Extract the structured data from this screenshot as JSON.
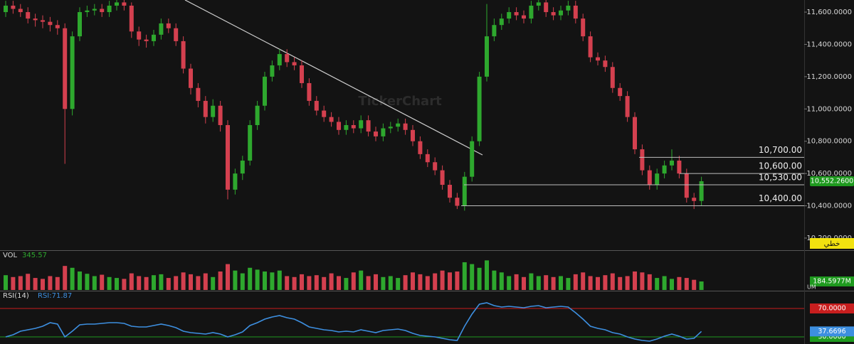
{
  "chart_data": [
    {
      "type": "candlestick",
      "watermark": "TickerChart",
      "mode_label": "خطي",
      "up_color": "#2ea82e",
      "down_color": "#d4404f",
      "open": [
        11600,
        11640,
        11620,
        11600,
        11560,
        11550,
        11540,
        11520,
        11500,
        11000,
        11450,
        11600,
        11610,
        11620,
        11600,
        11640,
        11660,
        11640,
        11480,
        11430,
        11420,
        11460,
        11530,
        11500,
        11420,
        11250,
        11130,
        11050,
        10950,
        11020,
        10900,
        10500,
        10600,
        10680,
        10900,
        11020,
        11200,
        11270,
        11340,
        11290,
        11270,
        11160,
        11050,
        10990,
        10950,
        10920,
        10870,
        10900,
        10880,
        10930,
        10860,
        10830,
        10880,
        10890,
        10910,
        10870,
        10800,
        10720,
        10670,
        10620,
        10530,
        10450,
        10400,
        10580,
        10800,
        11200,
        11450,
        11520,
        11560,
        11600,
        11580,
        11560,
        11640,
        11660,
        11600,
        11580,
        11610,
        11640,
        11560,
        11450,
        11320,
        11300,
        11260,
        11130,
        11080,
        10950,
        10750,
        10620,
        10530,
        10600,
        10650,
        10680,
        10600,
        10450,
        10430
      ],
      "high": [
        11670,
        11670,
        11650,
        11630,
        11590,
        11580,
        11570,
        11550,
        11530,
        11480,
        11630,
        11640,
        11650,
        11650,
        11670,
        11675,
        11675,
        11660,
        11510,
        11460,
        11490,
        11560,
        11560,
        11530,
        11450,
        11280,
        11160,
        11080,
        11060,
        11050,
        10930,
        10630,
        10710,
        10930,
        11050,
        11230,
        11300,
        11370,
        11370,
        11320,
        11300,
        11190,
        11080,
        11020,
        10980,
        10950,
        10930,
        10930,
        10960,
        10960,
        10890,
        10910,
        10920,
        10940,
        10940,
        10900,
        10830,
        10750,
        10700,
        10650,
        10560,
        10480,
        10610,
        10830,
        11230,
        11650,
        11560,
        11590,
        11630,
        11630,
        11610,
        11670,
        11675,
        11675,
        11630,
        11640,
        11670,
        11670,
        11590,
        11480,
        11350,
        11330,
        11290,
        11160,
        11110,
        10980,
        10780,
        10650,
        10630,
        10680,
        10750,
        10710,
        10630,
        10480,
        10580
      ],
      "low": [
        11570,
        11590,
        11570,
        11530,
        11510,
        11500,
        11480,
        11460,
        10660,
        10960,
        11420,
        11570,
        11580,
        11570,
        11570,
        11610,
        11610,
        11440,
        11390,
        11380,
        11390,
        11430,
        11470,
        11390,
        11220,
        11090,
        11010,
        10910,
        10920,
        10860,
        10440,
        10470,
        10560,
        10650,
        10870,
        10990,
        11170,
        11240,
        11260,
        11240,
        11130,
        11020,
        10960,
        10920,
        10890,
        10840,
        10840,
        10850,
        10850,
        10830,
        10800,
        10800,
        10850,
        10860,
        10840,
        10770,
        10690,
        10640,
        10590,
        10500,
        10420,
        10380,
        10370,
        10550,
        10770,
        11170,
        11420,
        11490,
        11530,
        11550,
        11530,
        11530,
        11610,
        11570,
        11550,
        11550,
        11580,
        11530,
        11420,
        11290,
        11270,
        11230,
        11100,
        11050,
        10920,
        10720,
        10590,
        10500,
        10500,
        10570,
        10620,
        10570,
        10420,
        10380,
        10400
      ],
      "close": [
        11640,
        11620,
        11600,
        11560,
        11550,
        11540,
        11520,
        11500,
        11000,
        11450,
        11600,
        11610,
        11620,
        11600,
        11640,
        11660,
        11640,
        11480,
        11430,
        11420,
        11460,
        11530,
        11500,
        11420,
        11250,
        11130,
        11050,
        10950,
        11020,
        10900,
        10500,
        10600,
        10680,
        10900,
        11020,
        11200,
        11270,
        11340,
        11290,
        11270,
        11160,
        11050,
        10990,
        10950,
        10920,
        10870,
        10900,
        10880,
        10930,
        10860,
        10830,
        10880,
        10890,
        10910,
        10870,
        10800,
        10720,
        10670,
        10620,
        10530,
        10450,
        10400,
        10580,
        10800,
        11200,
        11450,
        11520,
        11560,
        11600,
        11580,
        11560,
        11640,
        11660,
        11600,
        11580,
        11610,
        11640,
        11560,
        11450,
        11320,
        11300,
        11260,
        11130,
        11080,
        10950,
        10750,
        10620,
        10530,
        10600,
        10650,
        10680,
        10600,
        10450,
        10430,
        10552.26
      ],
      "ylim": [
        10125,
        11675
      ],
      "yticks": [
        {
          "value": 11600,
          "label": "11,600.0000"
        },
        {
          "value": 11400,
          "label": "11,400.0000"
        },
        {
          "value": 11200,
          "label": "11,200.0000"
        },
        {
          "value": 11000,
          "label": "11,000.0000"
        },
        {
          "value": 10800,
          "label": "10,800.0000"
        },
        {
          "value": 10600,
          "label": "10,600.0000"
        },
        {
          "value": 10400,
          "label": "10,400.0000"
        },
        {
          "value": 10200,
          "label": "10,200.0000"
        }
      ],
      "last_price": {
        "value": 10552.26,
        "label": "10,552.2600"
      },
      "levels": [
        {
          "value": 10700,
          "label": "10,700.00"
        },
        {
          "value": 10600,
          "label": "10,600.00"
        },
        {
          "value": 10530,
          "label": "10,530.00"
        },
        {
          "value": 10400,
          "label": "10,400.00"
        }
      ]
    },
    {
      "type": "bar",
      "title": "VOL",
      "title_value": "345.57",
      "values": [
        320,
        280,
        300,
        350,
        260,
        240,
        300,
        280,
        520,
        480,
        400,
        350,
        300,
        330,
        280,
        260,
        240,
        360,
        300,
        280,
        320,
        340,
        260,
        300,
        380,
        340,
        300,
        360,
        280,
        400,
        560,
        420,
        360,
        480,
        440,
        400,
        380,
        420,
        300,
        280,
        340,
        300,
        320,
        280,
        360,
        300,
        260,
        380,
        420,
        300,
        340,
        280,
        300,
        260,
        320,
        380,
        340,
        300,
        360,
        420,
        380,
        400,
        600,
        560,
        480,
        640,
        420,
        380,
        300,
        340,
        280,
        360,
        300,
        320,
        280,
        300,
        260,
        340,
        380,
        300,
        280,
        320,
        360,
        280,
        300,
        400,
        380,
        340,
        260,
        300,
        240,
        280,
        260,
        220,
        184.5977
      ],
      "ylim": [
        0,
        830
      ],
      "last_value": {
        "value": 184.5977,
        "label": "184.5977M"
      },
      "unit_label": "UM"
    },
    {
      "type": "line",
      "title": "RSI(14)",
      "title_value": "RSI:71.87",
      "color": "#3d8fe0",
      "values": [
        30,
        33,
        38,
        40,
        42,
        45,
        50,
        48,
        30,
        38,
        47,
        48,
        48,
        49,
        50,
        50,
        49,
        45,
        44,
        44,
        46,
        48,
        46,
        43,
        38,
        36,
        35,
        34,
        36,
        34,
        30,
        33,
        37,
        46,
        50,
        55,
        58,
        60,
        57,
        55,
        50,
        44,
        42,
        40,
        39,
        37,
        38,
        37,
        40,
        38,
        36,
        39,
        40,
        41,
        39,
        35,
        32,
        31,
        30,
        28,
        26,
        25,
        45,
        62,
        76,
        78,
        74,
        72,
        73,
        72,
        71,
        73,
        74,
        71,
        72,
        73,
        72,
        64,
        55,
        45,
        42,
        40,
        36,
        34,
        30,
        27,
        25,
        24,
        27,
        31,
        34,
        31,
        27,
        28,
        37.6696
      ],
      "ylim": [
        20,
        94
      ],
      "levels": [
        {
          "value": 70,
          "label": "70.0000",
          "color": "#c81e1e"
        },
        {
          "value": 30,
          "label": "30.0000",
          "color": "#1f9a1f"
        }
      ],
      "last_value": {
        "value": 37.6696,
        "label": "37.6696"
      }
    }
  ]
}
